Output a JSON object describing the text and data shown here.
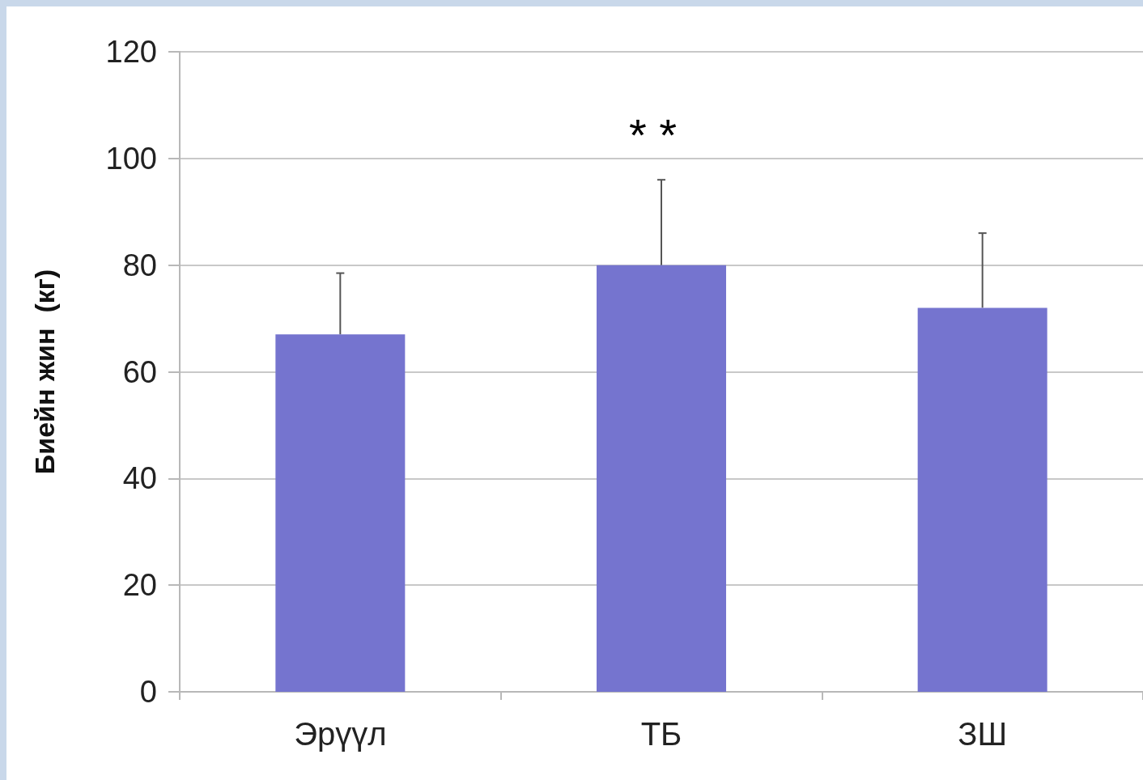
{
  "chart_data": {
    "type": "bar",
    "ylabel": "Биейн жин  (кг)",
    "categories": [
      "Эрүүл",
      "ТБ",
      "ЗШ"
    ],
    "values": [
      67,
      80,
      72
    ],
    "color": "#7574cf",
    "errors": [
      [
        67,
        78.5
      ],
      [
        80,
        96
      ],
      [
        72,
        86
      ]
    ],
    "ylim": [
      0,
      120
    ],
    "yticks": [
      0,
      20,
      40,
      60,
      80,
      100,
      120
    ],
    "grid": "y",
    "annotations": [
      "* *"
    ]
  }
}
